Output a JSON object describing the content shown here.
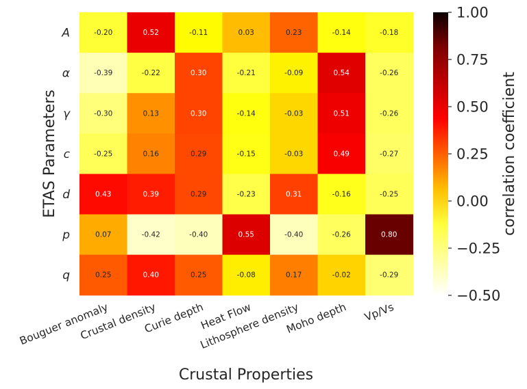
{
  "chart_data": {
    "type": "heatmap",
    "title": "",
    "xlabel": "Crustal Properties",
    "ylabel": "ETAS Parameters",
    "x_categories": [
      "Bouguer anomaly",
      "Crustal density",
      "Curie depth",
      "Heat Flow",
      "Lithosphere density",
      "Moho depth",
      "Vp/Vs"
    ],
    "y_categories": [
      "A",
      "α",
      "γ",
      "c",
      "d",
      "p",
      "q"
    ],
    "values": [
      [
        -0.2,
        0.52,
        -0.11,
        0.03,
        0.23,
        -0.14,
        -0.18
      ],
      [
        -0.39,
        -0.22,
        0.3,
        -0.21,
        -0.09,
        0.54,
        -0.26
      ],
      [
        -0.3,
        0.13,
        0.3,
        -0.14,
        -0.03,
        0.51,
        -0.26
      ],
      [
        -0.25,
        0.16,
        0.29,
        -0.15,
        -0.03,
        0.49,
        -0.27
      ],
      [
        0.43,
        0.39,
        0.29,
        -0.23,
        0.31,
        -0.16,
        -0.25
      ],
      [
        0.07,
        -0.42,
        -0.4,
        0.55,
        -0.4,
        -0.26,
        0.8
      ],
      [
        0.25,
        0.4,
        0.25,
        -0.08,
        0.17,
        -0.02,
        -0.29
      ]
    ],
    "colorbar": {
      "label": "correlation coefficient",
      "range": [
        -0.5,
        1.0
      ],
      "ticks": [
        "1.00",
        "0.75",
        "0.50",
        "0.25",
        "0.00",
        "−0.25",
        "−0.50"
      ],
      "colormap": "hot_r"
    },
    "annotations": true,
    "grid": false
  }
}
